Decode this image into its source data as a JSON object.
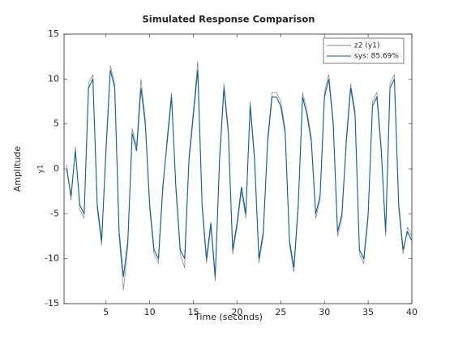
{
  "chart_data": {
    "type": "line",
    "title": "Simulated Response Comparison",
    "xlabel": "Time (seconds)",
    "ylabel": "Amplitude",
    "ylabel_inner": "y1",
    "x": [
      0.5,
      1,
      1.5,
      2,
      2.5,
      3,
      3.5,
      4,
      4.5,
      5,
      5.5,
      6,
      6.5,
      7,
      7.5,
      8,
      8.5,
      9,
      9.5,
      10,
      10.5,
      11,
      11.5,
      12,
      12.5,
      13,
      13.5,
      14,
      14.5,
      15,
      15.5,
      16,
      16.5,
      17,
      17.5,
      18,
      18.5,
      19,
      19.5,
      20,
      20.5,
      21,
      21.5,
      22,
      22.5,
      23,
      23.5,
      24,
      24.5,
      25,
      25.5,
      26,
      26.5,
      27,
      27.5,
      28,
      28.5,
      29,
      29.5,
      30,
      30.5,
      31,
      31.5,
      32,
      32.5,
      33,
      33.5,
      34,
      34.5,
      35,
      35.5,
      36,
      36.5,
      37,
      37.5,
      38,
      38.5,
      39,
      39.5,
      40
    ],
    "series": [
      {
        "name": "z2 (y1)",
        "color": "#7f7f7f",
        "values": [
          0.5,
          -3.5,
          2.5,
          -4.5,
          -5.5,
          9.5,
          10.5,
          -4.5,
          -8.5,
          2.5,
          11.5,
          9.5,
          -7.5,
          -13.5,
          -8.5,
          4.5,
          2.5,
          10,
          5.5,
          -4.5,
          -9.5,
          -10.5,
          -2.5,
          3.5,
          8.5,
          -2.5,
          -9.5,
          -11,
          1.5,
          6.5,
          12,
          -4.5,
          -10.5,
          -6.5,
          -12.5,
          1.5,
          9.5,
          4.5,
          -9.5,
          -6.5,
          -2.5,
          -5.5,
          7.5,
          1.5,
          -10.5,
          -7.5,
          3.5,
          8.5,
          8.5,
          7.5,
          4.5,
          -8.5,
          -11.5,
          -4.5,
          8.5,
          6.5,
          3.5,
          -5.5,
          -3.5,
          8.5,
          10.5,
          5.5,
          -7.5,
          -5.5,
          3.5,
          9.5,
          6.5,
          -9.5,
          -10.5,
          -5.5,
          7.5,
          8.5,
          2.5,
          -7.5,
          9.5,
          10.5,
          -4.5,
          -9.5,
          -6.5,
          -7.5
        ]
      },
      {
        "name": "sys: 85.69%",
        "color": "#1a5e8a",
        "values": [
          0,
          -3,
          2,
          -4,
          -5,
          9,
          10,
          -4,
          -8,
          2,
          11,
          9,
          -7,
          -12,
          -8,
          4,
          2,
          9,
          5,
          -4,
          -9,
          -10,
          -2,
          3,
          8,
          -2,
          -9,
          -10,
          1,
          6,
          11,
          -4,
          -10,
          -6,
          -12,
          1,
          9,
          4,
          -9,
          -6,
          -2,
          -5,
          7,
          1,
          -10,
          -7,
          3,
          8,
          8,
          7,
          4,
          -8,
          -11,
          -4,
          8,
          6,
          3,
          -5,
          -3,
          8,
          10,
          5,
          -7,
          -5,
          3,
          9,
          6,
          -9,
          -10,
          -5,
          7,
          8,
          2,
          -7,
          9,
          10,
          -4,
          -9,
          -7,
          -8
        ]
      }
    ],
    "xlim": [
      0.2,
      40
    ],
    "xticks": [
      5,
      10,
      15,
      20,
      25,
      30,
      35,
      40
    ],
    "ylim": [
      -15,
      15
    ],
    "yticks": [
      -15,
      -10,
      -5,
      0,
      5,
      10,
      15
    ],
    "grid": false,
    "legend": "northeast"
  }
}
